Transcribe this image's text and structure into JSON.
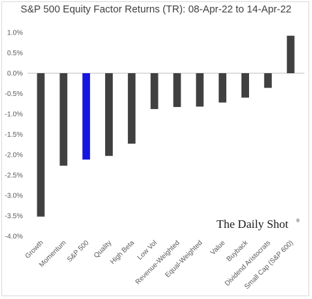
{
  "chart_data": {
    "type": "bar",
    "title": "S&P 500 Equity Factor Returns (TR): 08-Apr-22 to 14-Apr-22",
    "xlabel": "",
    "ylabel": "",
    "categories": [
      "Growth",
      "Momentum",
      "S&P 500",
      "Quality",
      "High Beta",
      "Low Vol",
      "Revenue-Weighted",
      "Equal-Weighted",
      "Value",
      "Buyback",
      "Dividend Aristocrats",
      "Small Cap (S&P 600)"
    ],
    "values": [
      -3.52,
      -2.27,
      -2.12,
      -2.03,
      -1.73,
      -0.88,
      -0.83,
      -0.82,
      -0.72,
      -0.6,
      -0.36,
      0.92
    ],
    "ylim": [
      -4.0,
      1.0
    ],
    "yticks": [
      "1.0%",
      "0.5%",
      "0.0%",
      "-0.5%",
      "-1.0%",
      "-1.5%",
      "-2.0%",
      "-2.5%",
      "-3.0%",
      "-3.5%",
      "-4.0%"
    ],
    "ytick_values": [
      1.0,
      0.5,
      0.0,
      -0.5,
      -1.0,
      -1.5,
      -2.0,
      -2.5,
      -3.0,
      -3.5,
      -4.0
    ],
    "grid": false,
    "legend": "none",
    "colors": {
      "default_bar": "#404040",
      "highlight_bar": "#1616e0",
      "axis": "#bfbfbf"
    },
    "highlight_category": "S&P 500"
  },
  "watermark": {
    "text": "The Daily Shot",
    "mark": "®"
  }
}
